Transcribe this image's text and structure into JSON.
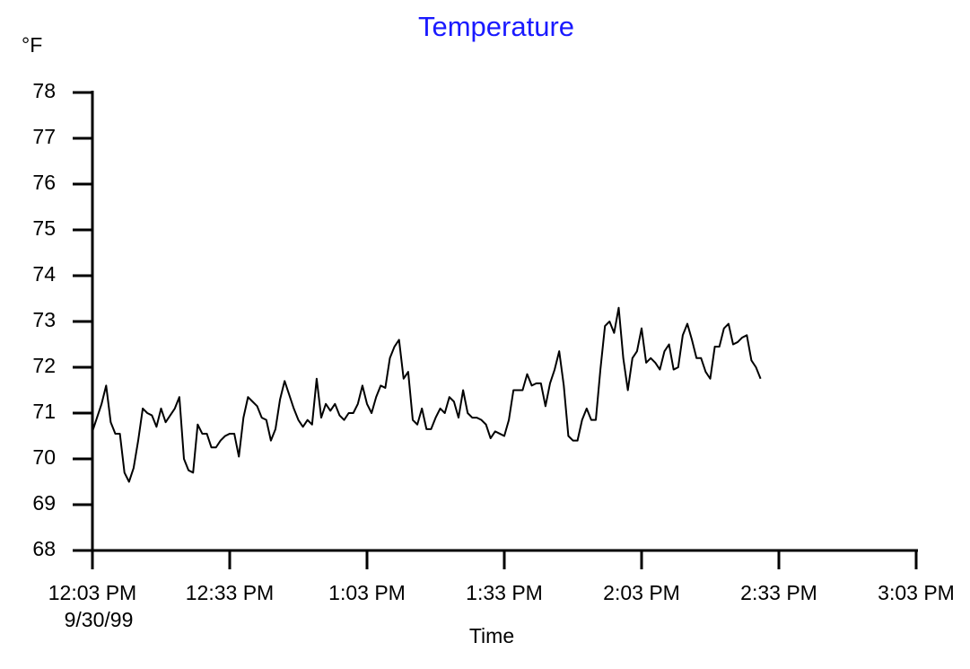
{
  "chart_data": {
    "type": "line",
    "title": "Temperature",
    "y_label": "°F",
    "x_label": "Time",
    "date": "9/30/99",
    "color": "#000000",
    "ylim": [
      68,
      78
    ],
    "yticks": [
      68,
      69,
      70,
      71,
      72,
      73,
      74,
      75,
      76,
      77,
      78
    ],
    "xlim": [
      "12:03 PM",
      "3:03 PM"
    ],
    "xticks": [
      "12:03 PM",
      "12:33 PM",
      "1:03 PM",
      "1:33 PM",
      "2:03 PM",
      "2:33 PM",
      "3:03 PM"
    ],
    "x": [
      "12:03 PM",
      "12:04 PM",
      "12:05 PM",
      "12:06 PM",
      "12:07 PM",
      "12:08 PM",
      "12:09 PM",
      "12:10 PM",
      "12:11 PM",
      "12:12 PM",
      "12:13 PM",
      "12:14 PM",
      "12:15 PM",
      "12:16 PM",
      "12:17 PM",
      "12:18 PM",
      "12:19 PM",
      "12:20 PM",
      "12:21 PM",
      "12:22 PM",
      "12:23 PM",
      "12:24 PM",
      "12:25 PM",
      "12:26 PM",
      "12:27 PM",
      "12:28 PM",
      "12:29 PM",
      "12:30 PM",
      "12:31 PM",
      "12:32 PM",
      "12:33 PM",
      "12:34 PM",
      "12:35 PM",
      "12:36 PM",
      "12:37 PM",
      "12:38 PM",
      "12:39 PM",
      "12:40 PM",
      "12:41 PM",
      "12:42 PM",
      "12:43 PM",
      "12:44 PM",
      "12:45 PM",
      "12:46 PM",
      "12:47 PM",
      "12:48 PM",
      "12:49 PM",
      "12:50 PM",
      "12:51 PM",
      "12:52 PM",
      "12:53 PM",
      "12:54 PM",
      "12:55 PM",
      "12:56 PM",
      "12:57 PM",
      "12:58 PM",
      "12:59 PM",
      "1:00 PM",
      "1:01 PM",
      "1:02 PM",
      "1:03 PM",
      "1:04 PM",
      "1:05 PM",
      "1:06 PM",
      "1:07 PM",
      "1:08 PM",
      "1:09 PM",
      "1:10 PM",
      "1:11 PM",
      "1:12 PM",
      "1:13 PM",
      "1:14 PM",
      "1:15 PM",
      "1:16 PM",
      "1:17 PM",
      "1:18 PM",
      "1:19 PM",
      "1:20 PM",
      "1:21 PM",
      "1:22 PM",
      "1:23 PM",
      "1:24 PM",
      "1:25 PM",
      "1:26 PM",
      "1:27 PM",
      "1:28 PM",
      "1:29 PM",
      "1:30 PM",
      "1:31 PM",
      "1:32 PM",
      "1:33 PM",
      "1:34 PM",
      "1:35 PM",
      "1:36 PM",
      "1:37 PM",
      "1:38 PM",
      "1:39 PM",
      "1:40 PM",
      "1:41 PM",
      "1:42 PM",
      "1:43 PM",
      "1:44 PM",
      "1:45 PM",
      "1:46 PM",
      "1:47 PM",
      "1:48 PM",
      "1:49 PM",
      "1:50 PM",
      "1:51 PM",
      "1:52 PM",
      "1:53 PM",
      "1:54 PM",
      "1:55 PM",
      "1:56 PM",
      "1:57 PM",
      "1:58 PM",
      "1:59 PM",
      "2:00 PM",
      "2:01 PM",
      "2:02 PM",
      "2:03 PM",
      "2:04 PM",
      "2:05 PM",
      "2:06 PM",
      "2:07 PM",
      "2:08 PM",
      "2:09 PM",
      "2:10 PM",
      "2:11 PM",
      "2:12 PM",
      "2:13 PM",
      "2:14 PM",
      "2:15 PM",
      "2:16 PM",
      "2:17 PM",
      "2:18 PM",
      "2:19 PM",
      "2:20 PM",
      "2:21 PM",
      "2:22 PM",
      "2:23 PM",
      "2:24 PM",
      "2:25 PM",
      "2:26 PM",
      "2:27 PM",
      "2:28 PM",
      "2:29 PM"
    ],
    "values": [
      70.6,
      70.9,
      71.2,
      71.6,
      70.8,
      70.55,
      70.55,
      69.7,
      69.5,
      69.8,
      70.4,
      71.1,
      71.0,
      70.95,
      70.7,
      71.1,
      70.8,
      70.95,
      71.1,
      71.35,
      70.0,
      69.75,
      69.7,
      70.75,
      70.55,
      70.55,
      70.25,
      70.25,
      70.4,
      70.5,
      70.55,
      70.55,
      70.05,
      70.9,
      71.35,
      71.25,
      71.15,
      70.9,
      70.85,
      70.4,
      70.65,
      71.3,
      71.7,
      71.4,
      71.1,
      70.85,
      70.7,
      70.85,
      70.75,
      71.75,
      70.9,
      71.2,
      71.05,
      71.2,
      70.95,
      70.85,
      71.0,
      71.0,
      71.2,
      71.6,
      71.2,
      71.0,
      71.35,
      71.6,
      71.55,
      72.2,
      72.45,
      72.6,
      71.75,
      71.9,
      70.85,
      70.75,
      71.1,
      70.65,
      70.65,
      70.9,
      71.1,
      71.0,
      71.35,
      71.25,
      70.9,
      71.5,
      71.0,
      70.9,
      70.9,
      70.85,
      70.75,
      70.45,
      70.6,
      70.55,
      70.5,
      70.85,
      71.5,
      71.5,
      71.5,
      71.85,
      71.6,
      71.65,
      71.65,
      71.15,
      71.65,
      71.95,
      72.35,
      71.6,
      70.5,
      70.4,
      70.4,
      70.85,
      71.1,
      70.85,
      70.85,
      71.95,
      72.9,
      73.0,
      72.75,
      73.3,
      72.2,
      71.5,
      72.2,
      72.35,
      72.85,
      72.1,
      72.2,
      72.1,
      71.95,
      72.35,
      72.5,
      71.95,
      72.0,
      72.7,
      72.95,
      72.6,
      72.2,
      72.2,
      71.9,
      71.75,
      72.45,
      72.45,
      72.85,
      72.95,
      72.5,
      72.55,
      72.65,
      72.7,
      72.15,
      72.0,
      71.75
    ]
  }
}
